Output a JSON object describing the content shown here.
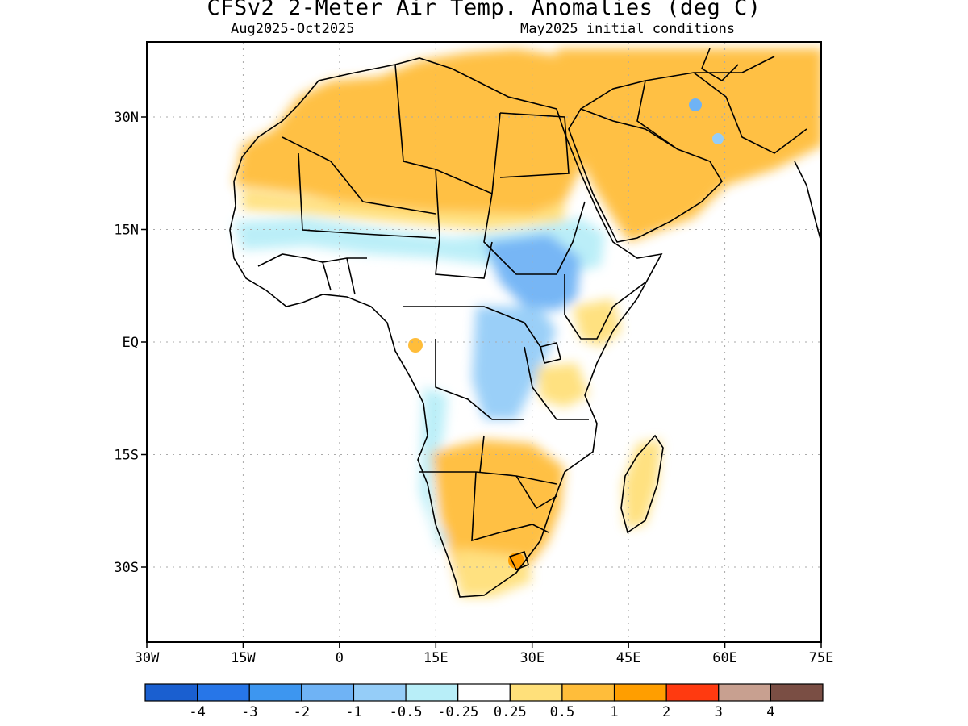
{
  "title": "CFSv2 2-Meter Air Temp. Anomalies (deg C)",
  "subtitle_left": "Aug2025-Oct2025",
  "subtitle_right": "May2025 initial conditions",
  "lon_ticks": [
    "30W",
    "15W",
    "0",
    "15E",
    "30E",
    "45E",
    "60E",
    "75E"
  ],
  "lat_ticks": [
    "30N",
    "15N",
    "EQ",
    "15S",
    "30S"
  ],
  "colorbar": {
    "colors": [
      "#1a5fd0",
      "#2776e8",
      "#3d96f0",
      "#6fb3f5",
      "#95cdf8",
      "#b8eef8",
      "#ffffff",
      "#ffe07a",
      "#ffbd3a",
      "#ff9e00",
      "#ff3a10",
      "#c8a090",
      "#7a4e44"
    ],
    "labels": [
      "-4",
      "-3",
      "-2",
      "-1",
      "-0.5",
      "-0.25",
      "0.25",
      "0.5",
      "1",
      "2",
      "3",
      "4"
    ]
  },
  "map_extent": {
    "lon": [
      -30,
      75
    ],
    "lat": [
      -40,
      40
    ]
  },
  "grid": "dotted"
}
